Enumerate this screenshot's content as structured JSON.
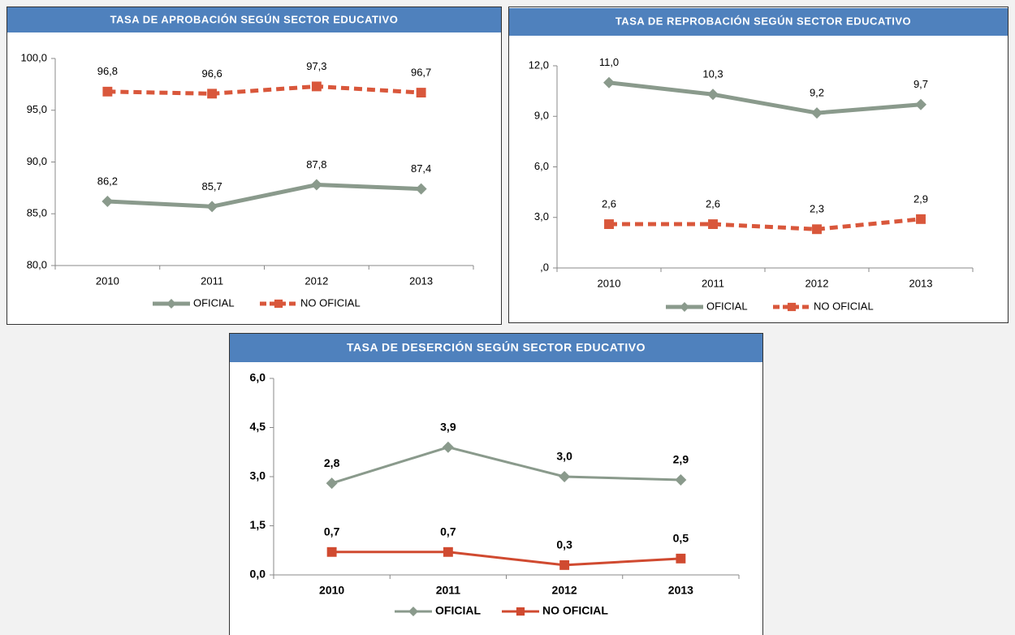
{
  "chart_data": [
    {
      "type": "line",
      "title": "TASA DE APROBACIÓN  SEGÚN SECTOR EDUCATIVO",
      "categories": [
        "2010",
        "2011",
        "2012",
        "2013"
      ],
      "ylim": [
        80,
        100
      ],
      "yticks": [
        {
          "value": 80,
          "label": "80,0"
        },
        {
          "value": 85,
          "label": "85,0"
        },
        {
          "value": 90,
          "label": "90,0"
        },
        {
          "value": 95,
          "label": "95,0"
        },
        {
          "value": 100,
          "label": "100,0"
        }
      ],
      "series": [
        {
          "name": "OFICIAL",
          "color": "#8a9a8c",
          "line_style": "solid",
          "marker": "diamond",
          "values": [
            86.2,
            85.7,
            87.8,
            87.4
          ],
          "value_labels": [
            "86,2",
            "85,7",
            "87,8",
            "87,4"
          ]
        },
        {
          "name": "NO OFICIAL",
          "color": "#d9573b",
          "line_style": "dashed",
          "marker": "square",
          "values": [
            96.8,
            96.6,
            97.3,
            96.7
          ],
          "value_labels": [
            "96,8",
            "96,6",
            "97,3",
            "96,7"
          ]
        }
      ]
    },
    {
      "type": "line",
      "title": "TASA DE REPROBACIÓN   SEGÚN SECTOR EDUCATIVO",
      "categories": [
        "2010",
        "2011",
        "2012",
        "2013"
      ],
      "ylim": [
        0,
        12
      ],
      "yticks": [
        {
          "value": 0,
          "label": ",0"
        },
        {
          "value": 3,
          "label": "3,0"
        },
        {
          "value": 6,
          "label": "6,0"
        },
        {
          "value": 9,
          "label": "9,0"
        },
        {
          "value": 12,
          "label": "12,0"
        }
      ],
      "series": [
        {
          "name": "OFICIAL",
          "color": "#8a9a8c",
          "line_style": "solid",
          "marker": "diamond",
          "values": [
            11.0,
            10.3,
            9.2,
            9.7
          ],
          "value_labels": [
            "11,0",
            "10,3",
            "9,2",
            "9,7"
          ]
        },
        {
          "name": "NO OFICIAL",
          "color": "#d9573b",
          "line_style": "dashed",
          "marker": "square",
          "values": [
            2.6,
            2.6,
            2.3,
            2.9
          ],
          "value_labels": [
            "2,6",
            "2,6",
            "2,3",
            "2,9"
          ]
        }
      ]
    },
    {
      "type": "line",
      "title": "TASA DE DESERCIÓN  SEGÚN SECTOR EDUCATIVO",
      "categories": [
        "2010",
        "2011",
        "2012",
        "2013"
      ],
      "ylim": [
        0,
        6
      ],
      "yticks": [
        {
          "value": 0,
          "label": "0,0"
        },
        {
          "value": 1.5,
          "label": "1,5"
        },
        {
          "value": 3,
          "label": "3,0"
        },
        {
          "value": 4.5,
          "label": "4,5"
        },
        {
          "value": 6,
          "label": "6,0"
        }
      ],
      "series": [
        {
          "name": "OFICIAL",
          "color": "#8a9a8c",
          "line_style": "thin",
          "marker": "diamond",
          "values": [
            2.8,
            3.9,
            3.0,
            2.9
          ],
          "value_labels": [
            "2,8",
            "3,9",
            "3,0",
            "2,9"
          ]
        },
        {
          "name": "NO OFICIAL",
          "color": "#d04a30",
          "line_style": "thin",
          "marker": "square",
          "values": [
            0.7,
            0.7,
            0.3,
            0.5
          ],
          "value_labels": [
            "0,7",
            "0,7",
            "0,3",
            "0,5"
          ]
        }
      ]
    }
  ]
}
